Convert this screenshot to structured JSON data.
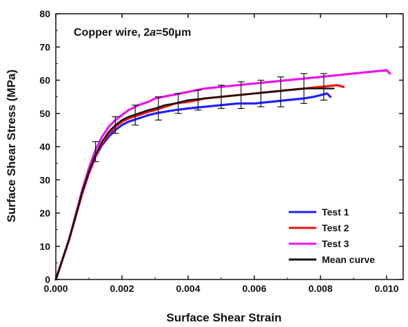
{
  "chart_data": {
    "type": "line",
    "annotation": {
      "prefix": "Copper wire, 2",
      "var": "a",
      "suffix": "=50μm"
    },
    "xlabel": "Surface Shear Strain",
    "ylabel": "Surface Shear Stress (MPa)",
    "xlim": [
      0,
      0.0105
    ],
    "ylim": [
      0,
      80
    ],
    "xticks": [
      "0.000",
      "0.002",
      "0.004",
      "0.006",
      "0.008",
      "0.010"
    ],
    "yticks": [
      "0",
      "10",
      "20",
      "30",
      "40",
      "50",
      "60",
      "70",
      "80"
    ],
    "grid": false,
    "legend_position": "bottom-right",
    "series": [
      {
        "name": "Test 1",
        "color": "#1f1fff",
        "x": [
          0,
          0.0002,
          0.0004,
          0.0006,
          0.0008,
          0.001,
          0.0012,
          0.0014,
          0.0016,
          0.0018,
          0.002,
          0.0022,
          0.0025,
          0.0028,
          0.003,
          0.0033,
          0.0036,
          0.004,
          0.0045,
          0.005,
          0.0055,
          0.006,
          0.0065,
          0.007,
          0.0075,
          0.0078,
          0.008,
          0.0082,
          0.0083
        ],
        "y": [
          0,
          6,
          12,
          19,
          26,
          32,
          37,
          40.5,
          43,
          45,
          46.5,
          47.5,
          48.5,
          49.5,
          50,
          50.5,
          51,
          51.5,
          52,
          52.5,
          53,
          53,
          53.5,
          54,
          54.5,
          55,
          55.5,
          56,
          55
        ]
      },
      {
        "name": "Test 2",
        "color": "#ee1111",
        "x": [
          0,
          0.0002,
          0.0004,
          0.0006,
          0.0008,
          0.001,
          0.0012,
          0.0014,
          0.0016,
          0.0018,
          0.002,
          0.0022,
          0.0025,
          0.0028,
          0.003,
          0.0033,
          0.0036,
          0.004,
          0.0045,
          0.005,
          0.0055,
          0.006,
          0.0065,
          0.007,
          0.0075,
          0.008,
          0.0085,
          0.0087
        ],
        "y": [
          0,
          6,
          12,
          19,
          26,
          32,
          37,
          41,
          44,
          46,
          47.5,
          48.5,
          49.5,
          50.5,
          51,
          52,
          53,
          53.5,
          54.5,
          55,
          55.5,
          56,
          56.5,
          57,
          57.5,
          58,
          58.5,
          58
        ]
      },
      {
        "name": "Test 3",
        "color": "#ee11ee",
        "x": [
          0,
          0.0002,
          0.0004,
          0.0006,
          0.0008,
          0.001,
          0.0012,
          0.0014,
          0.0016,
          0.0018,
          0.002,
          0.0022,
          0.0025,
          0.0028,
          0.003,
          0.0035,
          0.004,
          0.0045,
          0.005,
          0.0055,
          0.006,
          0.0065,
          0.007,
          0.0075,
          0.008,
          0.0085,
          0.009,
          0.0095,
          0.01,
          0.0101
        ],
        "y": [
          0,
          6,
          12,
          19.5,
          27,
          33.5,
          39,
          43,
          46,
          48,
          49.5,
          51,
          52.5,
          53.5,
          54.5,
          55.5,
          56.5,
          57.5,
          58,
          58.5,
          59,
          59.5,
          60,
          60.5,
          61,
          61.5,
          62,
          62.5,
          63,
          62
        ]
      },
      {
        "name": "Mean curve",
        "color": "#111111",
        "x": [
          0,
          0.0002,
          0.0004,
          0.0006,
          0.0008,
          0.001,
          0.0012,
          0.0014,
          0.0016,
          0.0018,
          0.002,
          0.0022,
          0.0025,
          0.0028,
          0.003,
          0.0033,
          0.0036,
          0.004,
          0.0045,
          0.005,
          0.0055,
          0.006,
          0.0065,
          0.007,
          0.0075,
          0.008,
          0.0084
        ],
        "y": [
          0,
          6,
          12,
          19,
          26.5,
          32.5,
          37.5,
          41.5,
          44.5,
          46.5,
          48,
          49,
          50,
          51,
          51.5,
          52.5,
          53,
          54,
          54.5,
          55,
          55.5,
          56,
          56.5,
          57,
          57.5,
          57.5,
          57.5
        ]
      }
    ],
    "error_bars": {
      "x": [
        0.0012,
        0.0018,
        0.0024,
        0.0031,
        0.0037,
        0.0043,
        0.005,
        0.0056,
        0.0062,
        0.0068,
        0.0075,
        0.0081
      ],
      "y": [
        38.5,
        46.5,
        49.5,
        51.5,
        53,
        54,
        55,
        55.5,
        56,
        56.5,
        57.5,
        58
      ],
      "err": [
        3,
        2.5,
        3,
        3.5,
        3,
        3,
        3.5,
        4,
        4,
        4.5,
        4.5,
        4
      ]
    }
  }
}
